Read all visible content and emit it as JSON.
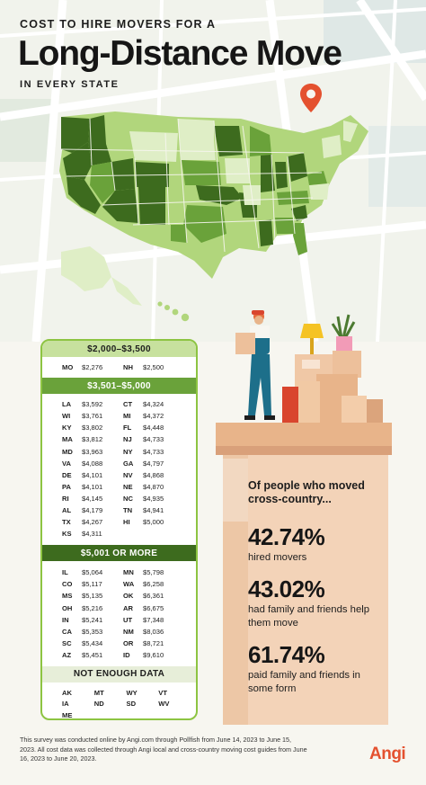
{
  "header": {
    "kicker": "COST TO HIRE MOVERS FOR A",
    "title": "Long-Distance Move",
    "subtitle": "IN EVERY STATE"
  },
  "colors": {
    "tier1": "#dfeec6",
    "tier2": "#b1d67c",
    "tier3": "#6aa23a",
    "tier4": "#3d6b1e",
    "accent": "#e4512f"
  },
  "tiers": [
    {
      "label": "$2,000–$3,500",
      "style": "light",
      "rows": [
        [
          "MO",
          "$2,276",
          "NH",
          "$2,500"
        ]
      ]
    },
    {
      "label": "$3,501–$5,000",
      "style": "mid",
      "rows": [
        [
          "LA",
          "$3,592",
          "CT",
          "$4,324"
        ],
        [
          "WI",
          "$3,761",
          "MI",
          "$4,372"
        ],
        [
          "KY",
          "$3,802",
          "FL",
          "$4,448"
        ],
        [
          "MA",
          "$3,812",
          "NJ",
          "$4,733"
        ],
        [
          "MD",
          "$3,963",
          "NY",
          "$4,733"
        ],
        [
          "VA",
          "$4,088",
          "GA",
          "$4,797"
        ],
        [
          "DE",
          "$4,101",
          "NV",
          "$4,868"
        ],
        [
          "PA",
          "$4,101",
          "NE",
          "$4,870"
        ],
        [
          "RI",
          "$4,145",
          "NC",
          "$4,935"
        ],
        [
          "AL",
          "$4,179",
          "TN",
          "$4,941"
        ],
        [
          "TX",
          "$4,267",
          "HI",
          "$5,000"
        ],
        [
          "KS",
          "$4,311",
          "",
          ""
        ]
      ]
    },
    {
      "label": "$5,001 OR MORE",
      "style": "dark",
      "rows": [
        [
          "IL",
          "$5,064",
          "MN",
          "$5,798"
        ],
        [
          "CO",
          "$5,117",
          "WA",
          "$6,258"
        ],
        [
          "MS",
          "$5,135",
          "OK",
          "$6,361"
        ],
        [
          "OH",
          "$5,216",
          "AR",
          "$6,675"
        ],
        [
          "IN",
          "$5,241",
          "UT",
          "$7,348"
        ],
        [
          "CA",
          "$5,353",
          "NM",
          "$8,036"
        ],
        [
          "SC",
          "$5,434",
          "OR",
          "$8,721"
        ],
        [
          "AZ",
          "$5,451",
          "ID",
          "$9,610"
        ]
      ]
    }
  ],
  "not_enough": {
    "label": "NOT ENOUGH DATA",
    "rows": [
      [
        "AK",
        "MT",
        "WY",
        "VT"
      ],
      [
        "IA",
        "ND",
        "SD",
        "WV"
      ],
      [
        "ME",
        "",
        "",
        ""
      ]
    ]
  },
  "stats": {
    "question": "Of people who moved cross-country...",
    "items": [
      {
        "pct": "42.74%",
        "desc": "hired movers"
      },
      {
        "pct": "43.02%",
        "desc": "had family and friends help them move"
      },
      {
        "pct": "61.74%",
        "desc": "paid family and friends in some form"
      }
    ]
  },
  "footnote": "This survey was conducted online by Angi.com through Pollfish from June 14, 2023 to June 15, 2023. All cost data was collected through Angi local and cross-country moving cost guides from June 16, 2023 to June 20, 2023.",
  "logo": "Angi",
  "icons": [
    "location-pin-icon",
    "mover-person-icon",
    "lamp-icon",
    "plant-icon",
    "box-icon"
  ]
}
